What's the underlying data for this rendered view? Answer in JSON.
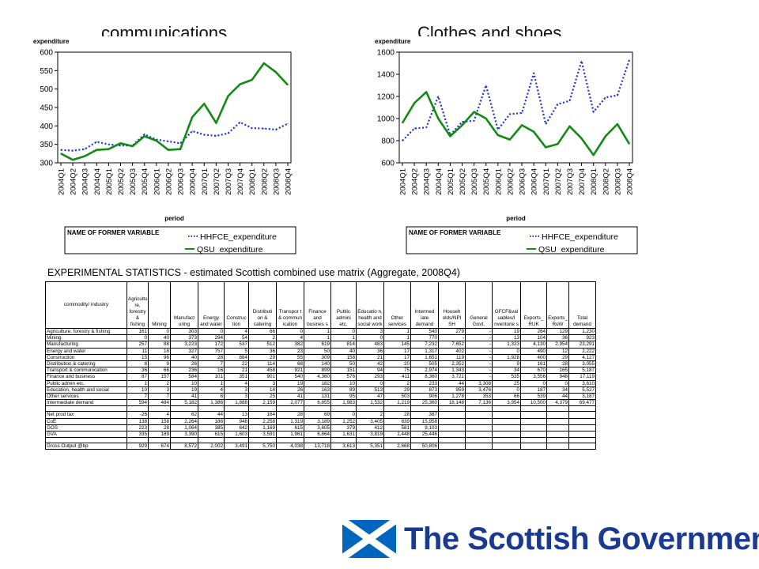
{
  "slide": {
    "title_left": "communications",
    "title_right": "Clothes and shoes",
    "table_caption": "EXPERIMENTAL STATISTICS - estimated Scottish combined use matrix (Aggregate, 2008Q4)",
    "logo_text": "The Scottish Government",
    "logo_flag_colors": {
      "blue": "#0065bd",
      "white": "#ffffff"
    }
  },
  "chart_data": [
    {
      "type": "line",
      "title": "communications",
      "ylabel": "expenditure",
      "xlabel": "period",
      "ylim": [
        300,
        600
      ],
      "yticks": [
        300,
        350,
        400,
        450,
        500,
        550,
        600
      ],
      "grid": false,
      "legend_title": "NAME OF FORMER VARIABLE",
      "categories": [
        "2004Q1",
        "2004Q2",
        "2004Q3",
        "2004Q4",
        "2005Q1",
        "2005Q2",
        "2005Q3",
        "2005Q4",
        "2006Q1",
        "2006Q2",
        "2006Q3",
        "2006Q4",
        "2007Q1",
        "2007Q2",
        "2007Q3",
        "2007Q4",
        "2008Q1",
        "2008Q2",
        "2008Q3",
        "2008Q4"
      ],
      "series": [
        {
          "name": "HHFCE_expenditure",
          "color": "#1f2fd1",
          "style": "dotted",
          "values": [
            335,
            333,
            337,
            357,
            350,
            347,
            347,
            377,
            363,
            358,
            353,
            386,
            376,
            373,
            380,
            410,
            394,
            393,
            390,
            406
          ]
        },
        {
          "name": "QSU_expenditure",
          "color": "#138a13",
          "style": "solid",
          "values": [
            325,
            308,
            318,
            335,
            337,
            353,
            345,
            372,
            360,
            335,
            337,
            424,
            460,
            408,
            481,
            513,
            525,
            570,
            546,
            511
          ]
        }
      ]
    },
    {
      "type": "line",
      "title": "Clothes and shoes",
      "ylabel": "expenditure",
      "xlabel": "period",
      "ylim": [
        600,
        1600
      ],
      "yticks": [
        600,
        800,
        1000,
        1200,
        1400,
        1600
      ],
      "grid": false,
      "legend_title": "NAME OF FORMER VARIABLE",
      "categories": [
        "2004Q1",
        "2004Q2",
        "2004Q3",
        "2004Q4",
        "2005Q1",
        "2005Q2",
        "2005Q3",
        "2005Q4",
        "2006Q1",
        "2006Q2",
        "2006Q3",
        "2006Q4",
        "2007Q1",
        "2007Q2",
        "2007Q3",
        "2007Q4",
        "2008Q1",
        "2008Q2",
        "2008Q3",
        "2008Q4"
      ],
      "series": [
        {
          "name": "HHFCE_expenditure",
          "color": "#1f2fd1",
          "style": "dotted",
          "values": [
            800,
            910,
            920,
            1200,
            850,
            970,
            980,
            1300,
            900,
            1040,
            1050,
            1410,
            950,
            1130,
            1160,
            1520,
            1060,
            1190,
            1210,
            1530
          ]
        },
        {
          "name": "QSU_expenditure",
          "color": "#138a13",
          "style": "solid",
          "values": [
            960,
            1140,
            1240,
            1000,
            840,
            940,
            1060,
            1000,
            850,
            810,
            940,
            880,
            740,
            770,
            930,
            820,
            670,
            840,
            950,
            770
          ]
        }
      ]
    },
    {
      "type": "table",
      "title": "EXPERIMENTAL STATISTICS - estimated Scottish combined use matrix (Aggregate, 2008Q4)",
      "columns": [
        "commodity/ industry",
        "Agricultu re, forestry & fishing",
        "Mining",
        "Manufact uring",
        "Energy and water",
        "Construc tion",
        "Distributi on & catering",
        "Transpor t & commun ication",
        "Finance and busines s",
        "Public admini etc.",
        "Educatio n, health and social work",
        "Other services",
        "Intermed iate demand",
        "Househ olds/NPI SH",
        "General Govt.",
        "GFCF&val uables/I nventorie s",
        "Exports_ RUK",
        "Exports_ RoW",
        "Total demand"
      ],
      "rows": [
        [
          "Agriculture, forestry & fishing",
          "161",
          "0",
          "303",
          "0",
          "4",
          "66",
          "0",
          "1",
          "0",
          "3",
          "1",
          "540",
          "279",
          "-",
          "19",
          "264",
          "129",
          "1,230"
        ],
        [
          "Mining",
          "0",
          "40",
          "373",
          "294",
          "54",
          "2",
          "4",
          "1",
          "1",
          "0",
          "1",
          "770",
          "-",
          "-",
          "13",
          "104",
          "36",
          "923"
        ],
        [
          "Manufacturing",
          "257",
          "88",
          "3,223",
          "172",
          "537",
          "512",
          "382",
          "619",
          "814",
          "483",
          "145",
          "7,232",
          "7,652",
          "-",
          "1,323",
          "4,130",
          "2,954",
          "23,291"
        ],
        [
          "Energy and water",
          "11",
          "16",
          "327",
          "757",
          "5",
          "36",
          "23",
          "50",
          "40",
          "36",
          "17",
          "1,317",
          "402",
          "-",
          "0",
          "490",
          "12",
          "2,222"
        ],
        [
          "Construction",
          "15",
          "96",
          "40",
          "28",
          "884",
          "29",
          "55",
          "309",
          "158",
          "21",
          "17",
          "1,651",
          "119",
          "-",
          "1,928",
          "400",
          "29",
          "4,127"
        ],
        [
          "Distribution & catering",
          "8",
          "9",
          "26",
          "7",
          "22",
          "114",
          "68",
          "140",
          "50",
          "42",
          "20",
          "505",
          "2,352",
          "-",
          "9",
          "161",
          "28",
          "3,055"
        ],
        [
          "Transport & communication",
          "36",
          "66",
          "236",
          "16",
          "21",
          "458",
          "921",
          "899",
          "151",
          "94",
          "75",
          "2,974",
          "1,343",
          "-",
          "34",
          "670",
          "165",
          "5,187"
        ],
        [
          "Finance and business",
          "87",
          "157",
          "584",
          "101",
          "351",
          "901",
          "540",
          "4,360",
          "576",
          "293",
          "411",
          "8,360",
          "3,721",
          "-",
          "535",
          "3,556",
          "948",
          "17,119"
        ],
        [
          "Public admin etc.",
          "1",
          "2",
          "10",
          "1",
          "4",
          "3",
          "19",
          "182",
          "10",
          "0",
          "2",
          "233",
          "44",
          "3,308",
          "25",
          "0",
          "0",
          "3,610"
        ],
        [
          "Education, health and social",
          "10",
          "3",
          "19",
          "4",
          "3",
          "14",
          "26",
          "163",
          "89",
          "513",
          "29",
          "873",
          "959",
          "3,476",
          "0",
          "187",
          "34",
          "5,527"
        ],
        [
          "Other services",
          "7",
          "7",
          "41",
          "6",
          "3",
          "25",
          "41",
          "131",
          "95",
          "47",
          "503",
          "906",
          "1,278",
          "353",
          "66",
          "539",
          "44",
          "3,187"
        ],
        [
          "Intermediate demand",
          "594",
          "484",
          "5,182",
          "1,386",
          "1,888",
          "2,159",
          "2,077",
          "6,855",
          "1,983",
          "1,532",
          "1,219",
          "25,360",
          "18,148",
          "7,136",
          "3,954",
          "10,500",
          "4,379",
          "69,477"
        ],
        [
          "",
          "",
          "",
          "",
          "",
          "",
          "",
          "",
          "",
          "",
          "",
          "",
          "",
          "",
          "",
          "",
          "",
          "",
          ""
        ],
        [
          "Net prod tax",
          "-26",
          "4",
          "62",
          "44",
          "13",
          "164",
          "28",
          "69",
          "0",
          "2",
          "28",
          "387",
          "",
          "",
          "",
          "",
          "",
          ""
        ],
        [
          "CoE",
          "138",
          "158",
          "2,264",
          "186",
          "948",
          "2,258",
          "1,319",
          "3,189",
          "1,252",
          "3,405",
          "839",
          "15,958",
          "",
          "",
          "",
          "",
          "",
          ""
        ],
        [
          "GOS",
          "223",
          "28",
          "1,064",
          "385",
          "642",
          "1,169",
          "615",
          "3,605",
          "379",
          "412",
          "581",
          "9,103",
          "",
          "",
          "",
          "",
          "",
          ""
        ],
        [
          "GVA",
          "335",
          "189",
          "3,390",
          "615",
          "1,603",
          "3,591",
          "1,961",
          "6,864",
          "1,631",
          "3,819",
          "1,448",
          "25,446",
          "",
          "",
          "",
          "",
          "",
          ""
        ],
        [
          "",
          "",
          "",
          "",
          "",
          "",
          "",
          "",
          "",
          "",
          "",
          "",
          "",
          "",
          "",
          "",
          "",
          "",
          ""
        ],
        [
          "Gross Output @bp",
          "929",
          "674",
          "8,572",
          "2,002",
          "3,491",
          "5,750",
          "4,038",
          "13,718",
          "3,613",
          "5,351",
          "2,668",
          "50,806",
          "",
          "",
          "",
          "",
          "",
          ""
        ]
      ]
    }
  ]
}
